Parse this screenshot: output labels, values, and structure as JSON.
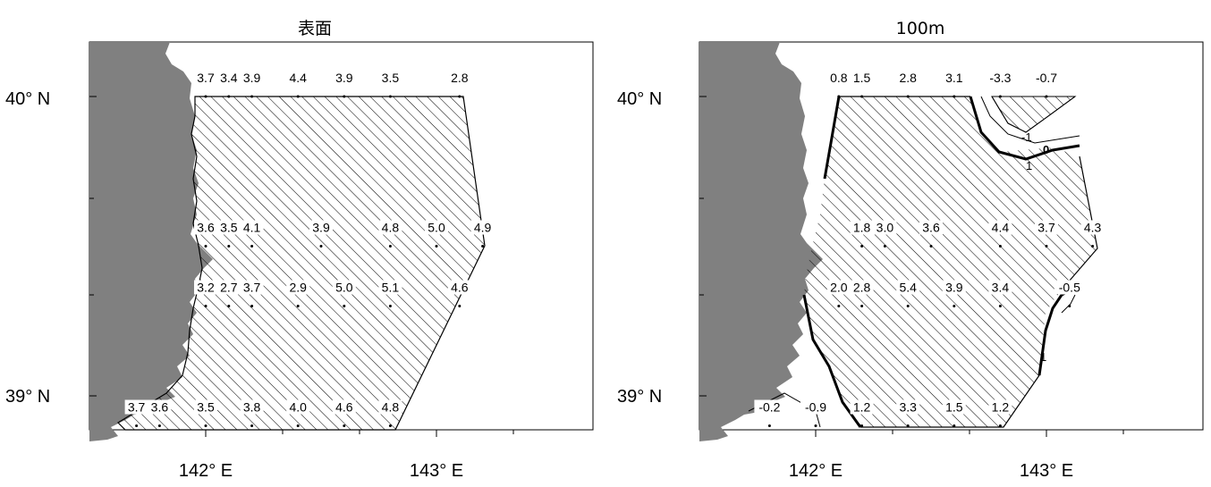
{
  "panels": [
    {
      "title": "表面",
      "lat_labels": [
        "40° N",
        "39° N"
      ],
      "lon_labels": [
        "142° E",
        "143° E"
      ],
      "stations": [
        {
          "lat": 40.0,
          "lon": 142.0,
          "value": "3.7"
        },
        {
          "lat": 40.0,
          "lon": 142.1,
          "value": "3.4"
        },
        {
          "lat": 40.0,
          "lon": 142.2,
          "value": "3.9"
        },
        {
          "lat": 40.0,
          "lon": 142.4,
          "value": "4.4"
        },
        {
          "lat": 40.0,
          "lon": 142.6,
          "value": "3.9"
        },
        {
          "lat": 40.0,
          "lon": 142.8,
          "value": "3.5"
        },
        {
          "lat": 40.0,
          "lon": 143.1,
          "value": "2.8"
        },
        {
          "lat": 39.5,
          "lon": 142.0,
          "value": "3.6"
        },
        {
          "lat": 39.5,
          "lon": 142.1,
          "value": "3.5"
        },
        {
          "lat": 39.5,
          "lon": 142.2,
          "value": "4.1"
        },
        {
          "lat": 39.5,
          "lon": 142.5,
          "value": "3.9"
        },
        {
          "lat": 39.5,
          "lon": 142.8,
          "value": "4.8"
        },
        {
          "lat": 39.5,
          "lon": 143.0,
          "value": "5.0"
        },
        {
          "lat": 39.5,
          "lon": 143.2,
          "value": "4.9"
        },
        {
          "lat": 39.3,
          "lon": 142.0,
          "value": "3.2"
        },
        {
          "lat": 39.3,
          "lon": 142.1,
          "value": "2.7"
        },
        {
          "lat": 39.3,
          "lon": 142.2,
          "value": "3.7"
        },
        {
          "lat": 39.3,
          "lon": 142.4,
          "value": "2.9"
        },
        {
          "lat": 39.3,
          "lon": 142.6,
          "value": "5.0"
        },
        {
          "lat": 39.3,
          "lon": 142.8,
          "value": "5.1"
        },
        {
          "lat": 39.3,
          "lon": 143.1,
          "value": "4.6"
        },
        {
          "lat": 38.9,
          "lon": 141.7,
          "value": "3.7"
        },
        {
          "lat": 38.9,
          "lon": 141.8,
          "value": "3.6"
        },
        {
          "lat": 38.9,
          "lon": 142.0,
          "value": "3.5"
        },
        {
          "lat": 38.9,
          "lon": 142.2,
          "value": "3.8"
        },
        {
          "lat": 38.9,
          "lon": 142.4,
          "value": "4.0"
        },
        {
          "lat": 38.9,
          "lon": 142.6,
          "value": "4.6"
        },
        {
          "lat": 38.9,
          "lon": 142.8,
          "value": "4.8"
        }
      ],
      "contour_labels": []
    },
    {
      "title": "100m",
      "lat_labels": [
        "40° N",
        "39° N"
      ],
      "lon_labels": [
        "142° E",
        "143° E"
      ],
      "stations": [
        {
          "lat": 40.0,
          "lon": 142.1,
          "value": "0.8"
        },
        {
          "lat": 40.0,
          "lon": 142.2,
          "value": "1.5"
        },
        {
          "lat": 40.0,
          "lon": 142.4,
          "value": "2.8"
        },
        {
          "lat": 40.0,
          "lon": 142.6,
          "value": "3.1"
        },
        {
          "lat": 40.0,
          "lon": 142.8,
          "value": "-3.3"
        },
        {
          "lat": 40.0,
          "lon": 143.0,
          "value": "-0.7"
        },
        {
          "lat": 39.5,
          "lon": 142.2,
          "value": "1.8"
        },
        {
          "lat": 39.5,
          "lon": 142.3,
          "value": "3.0"
        },
        {
          "lat": 39.5,
          "lon": 142.5,
          "value": "3.6"
        },
        {
          "lat": 39.5,
          "lon": 142.8,
          "value": "4.4"
        },
        {
          "lat": 39.5,
          "lon": 143.0,
          "value": "3.7"
        },
        {
          "lat": 39.5,
          "lon": 143.2,
          "value": "4.3"
        },
        {
          "lat": 39.3,
          "lon": 142.1,
          "value": "2.0"
        },
        {
          "lat": 39.3,
          "lon": 142.2,
          "value": "2.8"
        },
        {
          "lat": 39.3,
          "lon": 142.4,
          "value": "5.4"
        },
        {
          "lat": 39.3,
          "lon": 142.6,
          "value": "3.9"
        },
        {
          "lat": 39.3,
          "lon": 142.8,
          "value": "3.4"
        },
        {
          "lat": 39.3,
          "lon": 143.1,
          "value": "-0.5"
        },
        {
          "lat": 38.9,
          "lon": 141.8,
          "value": "-0.2"
        },
        {
          "lat": 38.9,
          "lon": 142.0,
          "value": "-0.9"
        },
        {
          "lat": 38.9,
          "lon": 142.2,
          "value": "1.2"
        },
        {
          "lat": 38.9,
          "lon": 142.4,
          "value": "3.3"
        },
        {
          "lat": 38.9,
          "lon": 142.6,
          "value": "1.5"
        },
        {
          "lat": 38.9,
          "lon": 142.8,
          "value": "1.2"
        }
      ],
      "contour_labels": [
        "-1",
        "0",
        "1",
        "1"
      ]
    }
  ],
  "colors": {
    "land": "#808080",
    "hatch": "#000000",
    "frame": "#000000"
  }
}
